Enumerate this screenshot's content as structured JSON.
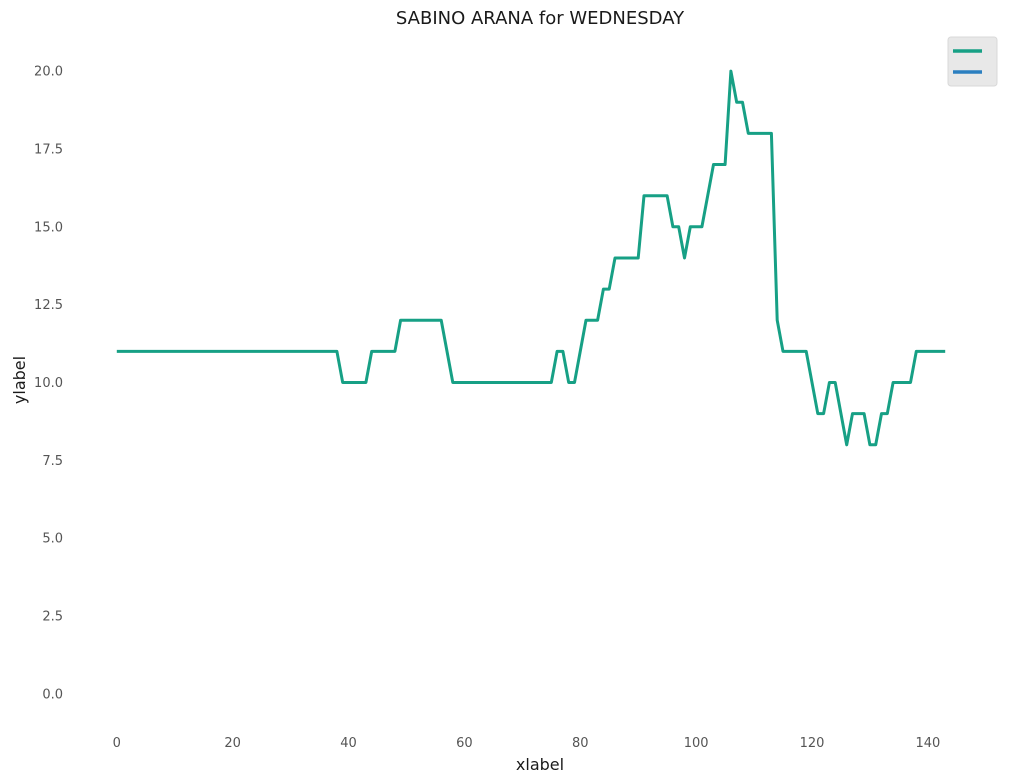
{
  "chart_data": {
    "type": "line",
    "title": "SABINO ARANA for WEDNESDAY",
    "xlabel": "xlabel",
    "ylabel": "ylabel",
    "xlim": [
      -6,
      149
    ],
    "ylim": [
      -1,
      21
    ],
    "x_ticks": [
      0,
      20,
      40,
      60,
      80,
      100,
      120,
      140
    ],
    "y_ticks": [
      0.0,
      2.5,
      5.0,
      7.5,
      10.0,
      12.5,
      15.0,
      17.5,
      20.0
    ],
    "grid": false,
    "legend_position": "top-right",
    "colors": [
      "#17a085",
      "#2b7fc0"
    ],
    "series": [
      {
        "points": [
          [
            0,
            11
          ],
          [
            38,
            11
          ],
          [
            39,
            10
          ],
          [
            43,
            10
          ],
          [
            44,
            11
          ],
          [
            48,
            11
          ],
          [
            49,
            12
          ],
          [
            56,
            12
          ],
          [
            58,
            10
          ],
          [
            75,
            10
          ],
          [
            76,
            11
          ],
          [
            77,
            11
          ],
          [
            78,
            10
          ],
          [
            79,
            10
          ],
          [
            81,
            12
          ],
          [
            83,
            12
          ],
          [
            84,
            13
          ],
          [
            85,
            13
          ],
          [
            86,
            14
          ],
          [
            90,
            14
          ],
          [
            91,
            16
          ],
          [
            95,
            16
          ],
          [
            96,
            15
          ],
          [
            97,
            15
          ],
          [
            98,
            14
          ],
          [
            99,
            15
          ],
          [
            101,
            15
          ],
          [
            103,
            17
          ],
          [
            105,
            17
          ],
          [
            106,
            20
          ],
          [
            107,
            19
          ],
          [
            108,
            19
          ],
          [
            109,
            18
          ],
          [
            113,
            18
          ],
          [
            114,
            12
          ],
          [
            115,
            11
          ],
          [
            119,
            11
          ],
          [
            121,
            9
          ],
          [
            122,
            9
          ],
          [
            123,
            10
          ],
          [
            124,
            10
          ],
          [
            126,
            8
          ],
          [
            127,
            9
          ],
          [
            129,
            9
          ],
          [
            130,
            8
          ],
          [
            131,
            8
          ],
          [
            132,
            9
          ],
          [
            133,
            9
          ],
          [
            134,
            10
          ],
          [
            137,
            10
          ],
          [
            138,
            11
          ],
          [
            143,
            11
          ]
        ]
      },
      {
        "points": []
      }
    ]
  }
}
